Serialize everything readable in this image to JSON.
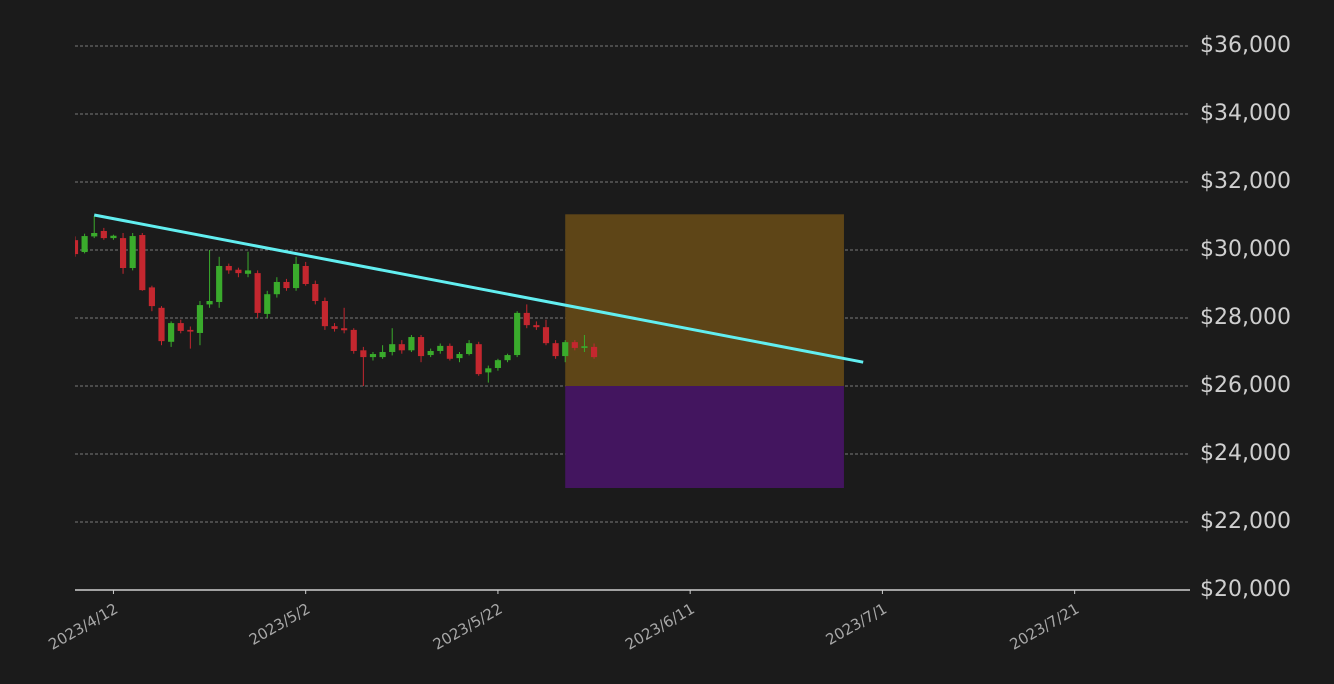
{
  "chart_data": {
    "type": "candlestick",
    "x": [
      "2023/4/8",
      "2023/4/9",
      "2023/4/10",
      "2023/4/11",
      "2023/4/12",
      "2023/4/13",
      "2023/4/14",
      "2023/4/15",
      "2023/4/16",
      "2023/4/17",
      "2023/4/18",
      "2023/4/19",
      "2023/4/20",
      "2023/4/21",
      "2023/4/22",
      "2023/4/23",
      "2023/4/24",
      "2023/4/25",
      "2023/4/26",
      "2023/4/27",
      "2023/4/28",
      "2023/4/29",
      "2023/4/30",
      "2023/5/1",
      "2023/5/2",
      "2023/5/3",
      "2023/5/4",
      "2023/5/5",
      "2023/5/6",
      "2023/5/7",
      "2023/5/8",
      "2023/5/9",
      "2023/5/10",
      "2023/5/11",
      "2023/5/12",
      "2023/5/13",
      "2023/5/14",
      "2023/5/15",
      "2023/5/16",
      "2023/5/17",
      "2023/5/18",
      "2023/5/19",
      "2023/5/20",
      "2023/5/21",
      "2023/5/22",
      "2023/5/23",
      "2023/5/24",
      "2023/5/25",
      "2023/5/26",
      "2023/5/27",
      "2023/5/28",
      "2023/5/29",
      "2023/5/30",
      "2023/5/31",
      "2023/6/1"
    ],
    "open": [
      30290,
      29940,
      30400,
      30560,
      30350,
      30350,
      29470,
      30440,
      28900,
      28300,
      27300,
      27850,
      27650,
      27560,
      28400,
      28470,
      29530,
      29420,
      29300,
      29320,
      28120,
      28700,
      29060,
      28880,
      29530,
      29000,
      28500,
      27760,
      27700,
      27650,
      27050,
      26850,
      26850,
      27000,
      27230,
      27050,
      27440,
      26910,
      27030,
      27180,
      26820,
      26940,
      27230,
      26400,
      26530,
      26760,
      26910,
      28150,
      27790,
      27730,
      27260,
      26880,
      27290,
      27120,
      27150
    ],
    "high": [
      30400,
      30480,
      31000,
      30650,
      30450,
      30500,
      30500,
      30500,
      28950,
      28350,
      27900,
      27950,
      27750,
      28500,
      30000,
      29800,
      29600,
      29480,
      29950,
      29400,
      28800,
      29200,
      29150,
      29800,
      29650,
      29100,
      28600,
      27850,
      28300,
      27700,
      27150,
      27000,
      27200,
      27700,
      27350,
      27500,
      27500,
      27100,
      27250,
      27250,
      27000,
      27350,
      27300,
      26600,
      26800,
      26950,
      28200,
      28400,
      27900,
      27950,
      27350,
      27350,
      27350,
      27500,
      27250
    ],
    "low": [
      29800,
      29900,
      30350,
      30300,
      30300,
      29300,
      29400,
      28800,
      28200,
      27200,
      27150,
      27550,
      27100,
      27200,
      28300,
      28300,
      29300,
      29200,
      29200,
      28000,
      28000,
      28600,
      28800,
      28800,
      28950,
      28400,
      27650,
      27600,
      27550,
      26950,
      26000,
      26750,
      26800,
      26900,
      26950,
      27000,
      26700,
      26850,
      26950,
      26750,
      26700,
      26900,
      26300,
      26100,
      26450,
      26700,
      26850,
      27700,
      27650,
      27200,
      26800,
      26700,
      27050,
      27000,
      26800
    ],
    "close": [
      29880,
      30410,
      30500,
      30350,
      30420,
      29470,
      30410,
      28820,
      28350,
      27320,
      27850,
      27620,
      27600,
      28380,
      28500,
      29530,
      29400,
      29320,
      29400,
      28150,
      28700,
      29060,
      28880,
      29590,
      29000,
      28500,
      27760,
      27680,
      27640,
      27030,
      26850,
      26940,
      27000,
      27230,
      27050,
      27440,
      26880,
      27030,
      27180,
      26800,
      26940,
      27260,
      26350,
      26520,
      26760,
      26910,
      28150,
      27790,
      27730,
      27260,
      26880,
      27290,
      27120,
      27170,
      26850
    ],
    "up_color": "#3aab2c",
    "down_color": "#c4272f",
    "xlim": [
      "2023/4/8",
      "2023/8/2"
    ],
    "xticks": [
      "2023/4/12",
      "2023/5/2",
      "2023/5/22",
      "2023/6/11",
      "2023/7/1",
      "2023/7/21"
    ],
    "ylim": [
      20000,
      36000
    ],
    "yticks": [
      {
        "value": 20000,
        "label": "$20,000"
      },
      {
        "value": 22000,
        "label": "$22,000"
      },
      {
        "value": 24000,
        "label": "$24,000"
      },
      {
        "value": 26000,
        "label": "$26,000"
      },
      {
        "value": 28000,
        "label": "$28,000"
      },
      {
        "value": 30000,
        "label": "$30,000"
      },
      {
        "value": 32000,
        "label": "$32,000"
      },
      {
        "value": 34000,
        "label": "$34,000"
      },
      {
        "value": 36000,
        "label": "$36,000"
      }
    ],
    "grid": true,
    "trendline": {
      "x": [
        "2023/4/10",
        "2023/6/29"
      ],
      "values": [
        31030,
        26700
      ],
      "color": "#62eef0"
    },
    "zones": [
      {
        "x": [
          "2023/5/29",
          "2023/6/27"
        ],
        "y": [
          26000,
          31050
        ],
        "color": "#5e4517"
      },
      {
        "x": [
          "2023/5/29",
          "2023/6/27"
        ],
        "y": [
          23000,
          26000
        ],
        "color": "#43155f"
      }
    ]
  }
}
